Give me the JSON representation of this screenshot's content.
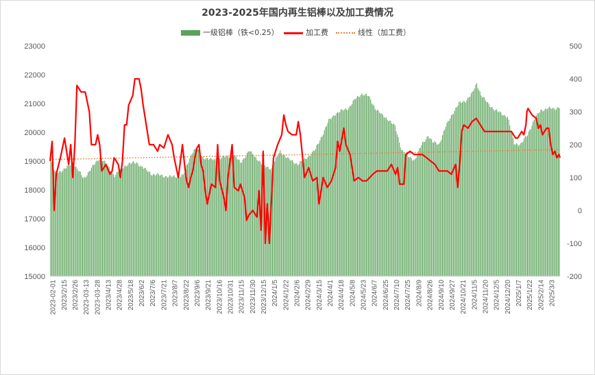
{
  "chart_data": {
    "type": "bar+line",
    "title": "2023-2025年国内再生铝棒以及加工费情况",
    "legend": [
      "一级铝棒（铁<0.25）",
      "加工费",
      "线性（加工费）"
    ],
    "colors": {
      "bar": "#5ba35b",
      "line": "#ff0000",
      "trend": "#ed7d31",
      "axis": "#595959",
      "gridline": "#d9d9d9"
    },
    "left_axis": {
      "ylim": [
        15000,
        23000
      ],
      "ticks": [
        "15000",
        "16000",
        "17000",
        "18000",
        "19000",
        "20000",
        "21000",
        "22000",
        "23000"
      ]
    },
    "right_axis": {
      "ylim": [
        -200,
        500
      ],
      "ticks": [
        "-200",
        "-100",
        "0",
        "100",
        "200",
        "300",
        "400",
        "500"
      ]
    },
    "x_tick_labels": [
      "2023-02-01",
      "2023/2/15",
      "2023/2/26",
      "2023-03-13",
      "2023-03-28",
      "2023/4/13",
      "2023/4/28",
      "2023/5/18",
      "2023/6/2",
      "2023/7/6",
      "2023/7/21",
      "2023/8/7",
      "2023/8/22",
      "2023/9/6",
      "2023/9/21",
      "2023/10/16",
      "2023/10/31",
      "2023/11/15",
      "2023/11/30",
      "2023/12/15",
      "2024/1/5",
      "2024/1/22",
      "2024/2/6",
      "2024/2/29",
      "2024/3/15",
      "2024/4/1",
      "2024/4/18",
      "2024/5/8",
      "2024/5/23",
      "2024/6/7",
      "2024/6/25",
      "2024/7/10",
      "2024/7/25",
      "2024/8/9",
      "2024/8/26",
      "2024/9/10",
      "2024/9/27",
      "2024/10/21",
      "2024/11/5",
      "2024/11/20",
      "2024/12/5",
      "2024/12/20",
      "2025/1/7",
      "2025/1/22",
      "2025/2/14",
      "2025/3/3"
    ],
    "series": [
      {
        "name": "一级铝棒（铁<0.25）",
        "axis": "left",
        "type": "bar",
        "anchors": [
          [
            0,
            19000
          ],
          [
            4,
            18600
          ],
          [
            12,
            18700
          ],
          [
            20,
            18950
          ],
          [
            30,
            18400
          ],
          [
            45,
            19150
          ],
          [
            58,
            18500
          ],
          [
            66,
            18800
          ],
          [
            70,
            18900
          ],
          [
            78,
            18950
          ],
          [
            86,
            18700
          ],
          [
            92,
            18550
          ],
          [
            100,
            18500
          ],
          [
            110,
            18450
          ],
          [
            120,
            18500
          ],
          [
            128,
            19300
          ],
          [
            132,
            19450
          ],
          [
            137,
            19150
          ],
          [
            145,
            19050
          ],
          [
            150,
            19050
          ],
          [
            158,
            19150
          ],
          [
            166,
            19200
          ],
          [
            172,
            18950
          ],
          [
            180,
            19350
          ],
          [
            188,
            19050
          ],
          [
            192,
            18850
          ],
          [
            200,
            18750
          ],
          [
            208,
            19350
          ],
          [
            216,
            19050
          ],
          [
            224,
            18900
          ],
          [
            230,
            19050
          ],
          [
            240,
            19400
          ],
          [
            246,
            19900
          ],
          [
            252,
            20400
          ],
          [
            258,
            20650
          ],
          [
            264,
            20750
          ],
          [
            270,
            20850
          ],
          [
            276,
            21150
          ],
          [
            282,
            21350
          ],
          [
            288,
            21250
          ],
          [
            294,
            20850
          ],
          [
            300,
            20600
          ],
          [
            306,
            20450
          ],
          [
            312,
            20200
          ],
          [
            318,
            19400
          ],
          [
            324,
            19150
          ],
          [
            330,
            19050
          ],
          [
            336,
            19550
          ],
          [
            342,
            19900
          ],
          [
            346,
            19650
          ],
          [
            352,
            19600
          ],
          [
            358,
            20200
          ],
          [
            364,
            20650
          ],
          [
            370,
            21000
          ],
          [
            376,
            21100
          ],
          [
            382,
            21350
          ],
          [
            386,
            21700
          ],
          [
            390,
            21300
          ],
          [
            396,
            21000
          ],
          [
            402,
            20800
          ],
          [
            408,
            20650
          ],
          [
            414,
            20550
          ],
          [
            420,
            19600
          ],
          [
            426,
            19600
          ],
          [
            432,
            19900
          ],
          [
            438,
            20450
          ],
          [
            444,
            20750
          ],
          [
            450,
            20850
          ],
          [
            456,
            20800
          ],
          [
            461,
            20900
          ]
        ]
      },
      {
        "name": "加工费",
        "axis": "right",
        "type": "line",
        "anchors": [
          [
            0,
            150
          ],
          [
            2,
            210
          ],
          [
            4,
            0
          ],
          [
            6,
            110
          ],
          [
            10,
            160
          ],
          [
            14,
            220
          ],
          [
            18,
            140
          ],
          [
            20,
            200
          ],
          [
            22,
            100
          ],
          [
            24,
            200
          ],
          [
            26,
            380
          ],
          [
            30,
            360
          ],
          [
            34,
            360
          ],
          [
            38,
            300
          ],
          [
            40,
            200
          ],
          [
            44,
            200
          ],
          [
            46,
            230
          ],
          [
            48,
            200
          ],
          [
            50,
            120
          ],
          [
            54,
            140
          ],
          [
            58,
            110
          ],
          [
            60,
            120
          ],
          [
            62,
            160
          ],
          [
            66,
            140
          ],
          [
            68,
            100
          ],
          [
            70,
            150
          ],
          [
            72,
            260
          ],
          [
            74,
            260
          ],
          [
            76,
            320
          ],
          [
            80,
            350
          ],
          [
            82,
            400
          ],
          [
            86,
            400
          ],
          [
            88,
            370
          ],
          [
            90,
            320
          ],
          [
            92,
            280
          ],
          [
            96,
            200
          ],
          [
            100,
            200
          ],
          [
            104,
            180
          ],
          [
            106,
            200
          ],
          [
            110,
            190
          ],
          [
            114,
            230
          ],
          [
            118,
            200
          ],
          [
            120,
            160
          ],
          [
            124,
            100
          ],
          [
            128,
            200
          ],
          [
            130,
            140
          ],
          [
            132,
            90
          ],
          [
            134,
            70
          ],
          [
            136,
            100
          ],
          [
            138,
            120
          ],
          [
            140,
            160
          ],
          [
            142,
            190
          ],
          [
            144,
            200
          ],
          [
            146,
            140
          ],
          [
            148,
            120
          ],
          [
            150,
            60
          ],
          [
            152,
            20
          ],
          [
            156,
            80
          ],
          [
            160,
            70
          ],
          [
            162,
            200
          ],
          [
            164,
            90
          ],
          [
            168,
            40
          ],
          [
            170,
            0
          ],
          [
            172,
            100
          ],
          [
            174,
            150
          ],
          [
            176,
            200
          ],
          [
            178,
            70
          ],
          [
            182,
            60
          ],
          [
            184,
            80
          ],
          [
            188,
            40
          ],
          [
            190,
            -30
          ],
          [
            192,
            -15
          ],
          [
            196,
            0
          ],
          [
            198,
            -10
          ],
          [
            200,
            -20
          ],
          [
            202,
            60
          ],
          [
            204,
            -60
          ],
          [
            206,
            180
          ],
          [
            208,
            -100
          ],
          [
            210,
            20
          ],
          [
            212,
            -100
          ],
          [
            216,
            160
          ],
          [
            220,
            200
          ],
          [
            224,
            230
          ],
          [
            226,
            290
          ],
          [
            228,
            260
          ],
          [
            230,
            240
          ],
          [
            234,
            230
          ],
          [
            238,
            230
          ],
          [
            240,
            270
          ],
          [
            242,
            230
          ],
          [
            246,
            100
          ],
          [
            250,
            130
          ],
          [
            254,
            90
          ],
          [
            258,
            100
          ],
          [
            260,
            20
          ],
          [
            264,
            100
          ],
          [
            268,
            70
          ],
          [
            272,
            90
          ],
          [
            276,
            130
          ],
          [
            278,
            210
          ],
          [
            280,
            180
          ],
          [
            284,
            250
          ],
          [
            286,
            200
          ],
          [
            290,
            170
          ],
          [
            292,
            130
          ],
          [
            294,
            90
          ],
          [
            298,
            100
          ],
          [
            302,
            90
          ],
          [
            306,
            90
          ],
          [
            312,
            110
          ],
          [
            316,
            120
          ],
          [
            320,
            120
          ],
          [
            326,
            120
          ],
          [
            330,
            140
          ],
          [
            334,
            110
          ],
          [
            336,
            130
          ],
          [
            338,
            80
          ],
          [
            342,
            80
          ],
          [
            344,
            170
          ],
          [
            348,
            180
          ],
          [
            352,
            170
          ],
          [
            356,
            170
          ],
          [
            360,
            170
          ],
          [
            364,
            160
          ],
          [
            368,
            150
          ],
          [
            372,
            140
          ],
          [
            376,
            120
          ],
          [
            380,
            120
          ],
          [
            384,
            120
          ],
          [
            388,
            110
          ],
          [
            392,
            140
          ],
          [
            394,
            70
          ],
          [
            396,
            140
          ],
          [
            398,
            240
          ],
          [
            400,
            260
          ],
          [
            404,
            250
          ],
          [
            408,
            270
          ],
          [
            412,
            280
          ],
          [
            416,
            260
          ],
          [
            420,
            240
          ],
          [
            426,
            240
          ],
          [
            432,
            240
          ],
          [
            440,
            240
          ],
          [
            446,
            240
          ],
          [
            450,
            220
          ],
          [
            452,
            220
          ],
          [
            456,
            240
          ],
          [
            458,
            230
          ],
          [
            460,
            260
          ],
          [
            461,
            300
          ],
          [
            462,
            310
          ],
          [
            466,
            290
          ],
          [
            470,
            280
          ],
          [
            472,
            250
          ],
          [
            474,
            260
          ],
          [
            476,
            230
          ],
          [
            478,
            240
          ],
          [
            480,
            250
          ],
          [
            482,
            250
          ],
          [
            484,
            200
          ],
          [
            486,
            170
          ],
          [
            488,
            180
          ],
          [
            490,
            160
          ],
          [
            492,
            170
          ],
          [
            493,
            160
          ]
        ]
      },
      {
        "name": "线性（加工费）",
        "axis": "right",
        "type": "trendline",
        "from": 155,
        "to": 185
      }
    ]
  }
}
